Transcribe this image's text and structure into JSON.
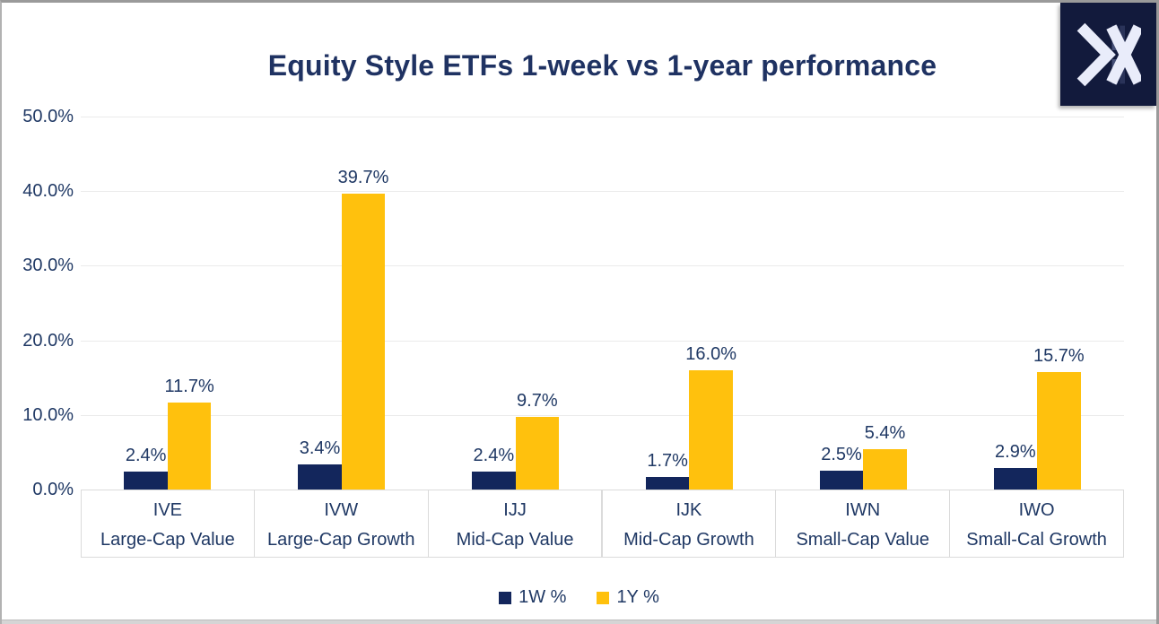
{
  "window": {
    "brand_logo": "xtrackers-style-x-monogram"
  },
  "chart_data": {
    "type": "bar",
    "title": "Equity Style ETFs 1-week vs 1-year performance",
    "categories": [
      {
        "ticker": "IVE",
        "style": "Large-Cap Value"
      },
      {
        "ticker": "IVW",
        "style": "Large-Cap Growth"
      },
      {
        "ticker": "IJJ",
        "style": "Mid-Cap Value"
      },
      {
        "ticker": "IJK",
        "style": "Mid-Cap Growth"
      },
      {
        "ticker": "IWN",
        "style": "Small-Cap Value"
      },
      {
        "ticker": "IWO",
        "style": "Small-Cal Growth"
      }
    ],
    "series": [
      {
        "name": "1W %",
        "color": "#13265c",
        "values": [
          2.4,
          3.4,
          2.4,
          1.7,
          2.5,
          2.9
        ]
      },
      {
        "name": "1Y %",
        "color": "#ffc10d",
        "values": [
          11.7,
          39.7,
          9.7,
          16.0,
          5.4,
          15.7
        ]
      }
    ],
    "y_axis": {
      "min": 0,
      "max": 50,
      "tick_values": [
        50,
        40,
        30,
        20,
        10,
        0
      ],
      "tick_labels": [
        "50.0%",
        "40.0%",
        "30.0%",
        "20.0%",
        "10.0%",
        "0.0%"
      ]
    },
    "data_label_format": "one_decimal_percent",
    "grid": true,
    "legend_position": "bottom",
    "colors": {
      "text": "#1f3864",
      "grid": "#ebebeb",
      "axis_border": "#dbdbdb",
      "logo_bg": "#121a3c",
      "logo_glyph": "#e9ecfa"
    }
  }
}
